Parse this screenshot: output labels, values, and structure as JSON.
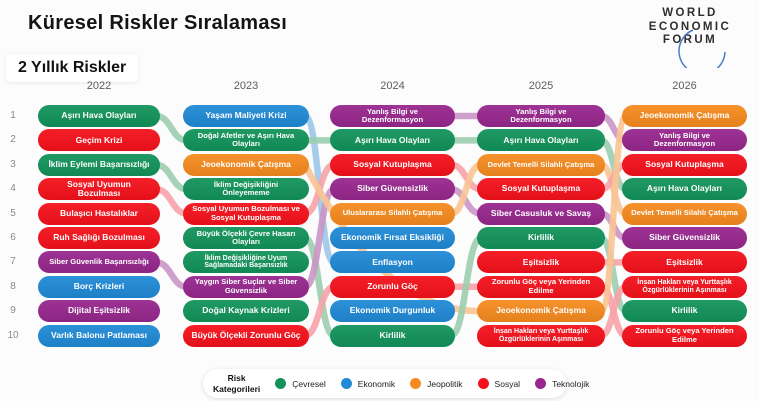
{
  "header": {
    "title": "Küresel Riskler Sıralaması",
    "subtitle": "2 Yıllık Riskler"
  },
  "logo": {
    "lines": [
      "WORLD",
      "ECONOMIC",
      "FORUM"
    ],
    "arc_color": "#4a7ec2"
  },
  "legend": {
    "label": "Risk Kategorileri",
    "items": [
      {
        "key": "cevresel",
        "label": "Çevresel",
        "color": "#12935A"
      },
      {
        "key": "ekonomik",
        "label": "Ekonomik",
        "color": "#208AD6"
      },
      {
        "key": "jeopolitik",
        "label": "Jeopolitik",
        "color": "#F68B1F"
      },
      {
        "key": "sosyal",
        "label": "Sosyal",
        "color": "#F5111B"
      },
      {
        "key": "teknolojik",
        "label": "Teknolojik",
        "color": "#97278E"
      }
    ]
  },
  "chart_data": {
    "type": "table",
    "title": "Küresel Riskler Sıralaması",
    "subtitle": "2 Yıllık Riskler",
    "years": [
      "2022",
      "2023",
      "2024",
      "2025",
      "2026"
    ],
    "ranks": [
      1,
      2,
      3,
      4,
      5,
      6,
      7,
      8,
      9,
      10
    ],
    "category_colors": {
      "cevresel": "#12935A",
      "ekonomik": "#208AD6",
      "jeopolitik": "#F68B1F",
      "sosyal": "#F5111B",
      "teknolojik": "#97278E"
    },
    "ribbon_colors": {
      "cevresel": "#9CCDB0",
      "ekonomik": "#9CC6EA",
      "jeopolitik": "#F8C493",
      "sosyal": "#F7A3A8",
      "teknolojik": "#CA96C6"
    },
    "columns": [
      {
        "year": "2022",
        "items": [
          {
            "rank": 1,
            "label": "Aşırı Hava Olayları",
            "category": "cevresel"
          },
          {
            "rank": 2,
            "label": "Geçim Krizi",
            "category": "sosyal"
          },
          {
            "rank": 3,
            "label": "İklim Eylemi Başarısızlığı",
            "category": "cevresel"
          },
          {
            "rank": 4,
            "label": "Sosyal Uyumun Bozulması",
            "category": "sosyal"
          },
          {
            "rank": 5,
            "label": "Bulaşıcı Hastalıklar",
            "category": "sosyal"
          },
          {
            "rank": 6,
            "label": "Ruh Sağlığı Bozulması",
            "category": "sosyal"
          },
          {
            "rank": 7,
            "label": "Siber Güvenlik Başarısızlığı",
            "category": "teknolojik"
          },
          {
            "rank": 8,
            "label": "Borç Krizleri",
            "category": "ekonomik"
          },
          {
            "rank": 9,
            "label": "Dijital Eşitsizlik",
            "category": "teknolojik"
          },
          {
            "rank": 10,
            "label": "Varlık Balonu Patlaması",
            "category": "ekonomik"
          }
        ]
      },
      {
        "year": "2023",
        "items": [
          {
            "rank": 1,
            "label": "Yaşam Maliyeti Krizi",
            "category": "ekonomik"
          },
          {
            "rank": 2,
            "label": "Doğal Afetler ve Aşırı Hava Olayları",
            "category": "cevresel"
          },
          {
            "rank": 3,
            "label": "Jeoekonomik Çatışma",
            "category": "jeopolitik"
          },
          {
            "rank": 4,
            "label": "İklim Değişikliğini Önleyememe",
            "category": "cevresel"
          },
          {
            "rank": 5,
            "label": "Sosyal Uyumun Bozulması ve Sosyal Kutuplaşma",
            "category": "sosyal"
          },
          {
            "rank": 6,
            "label": "Büyük Ölçekli Çevre Hasarı Olayları",
            "category": "cevresel"
          },
          {
            "rank": 7,
            "label": "İklim Değişikliğine Uyum Sağlamadaki Başarısızlık",
            "category": "cevresel"
          },
          {
            "rank": 8,
            "label": "Yaygın Siber Suçlar ve Siber Güvensizlik",
            "category": "teknolojik"
          },
          {
            "rank": 9,
            "label": "Doğal Kaynak Krizleri",
            "category": "cevresel"
          },
          {
            "rank": 10,
            "label": "Büyük Ölçekli Zorunlu Göç",
            "category": "sosyal"
          }
        ]
      },
      {
        "year": "2024",
        "items": [
          {
            "rank": 1,
            "label": "Yanlış Bilgi ve Dezenformasyon",
            "category": "teknolojik"
          },
          {
            "rank": 2,
            "label": "Aşırı Hava Olayları",
            "category": "cevresel"
          },
          {
            "rank": 3,
            "label": "Sosyal Kutuplaşma",
            "category": "sosyal"
          },
          {
            "rank": 4,
            "label": "Siber Güvensizlik",
            "category": "teknolojik"
          },
          {
            "rank": 5,
            "label": "Uluslararası Silahlı Çatışma",
            "category": "jeopolitik"
          },
          {
            "rank": 6,
            "label": "Ekonomik Fırsat Eksikliği",
            "category": "ekonomik"
          },
          {
            "rank": 7,
            "label": "Enflasyon",
            "category": "ekonomik"
          },
          {
            "rank": 8,
            "label": "Zorunlu Göç",
            "category": "sosyal"
          },
          {
            "rank": 9,
            "label": "Ekonomik Durgunluk",
            "category": "ekonomik"
          },
          {
            "rank": 10,
            "label": "Kirlilik",
            "category": "cevresel"
          }
        ]
      },
      {
        "year": "2025",
        "items": [
          {
            "rank": 1,
            "label": "Yanlış Bilgi ve Dezenformasyon",
            "category": "teknolojik"
          },
          {
            "rank": 2,
            "label": "Aşırı Hava Olayları",
            "category": "cevresel"
          },
          {
            "rank": 3,
            "label": "Devlet Temelli Silahlı Çatışma",
            "category": "jeopolitik"
          },
          {
            "rank": 4,
            "label": "Sosyal Kutuplaşma",
            "category": "sosyal"
          },
          {
            "rank": 5,
            "label": "Siber Casusluk ve Savaş",
            "category": "teknolojik"
          },
          {
            "rank": 6,
            "label": "Kirlilik",
            "category": "cevresel"
          },
          {
            "rank": 7,
            "label": "Eşitsizlik",
            "category": "sosyal"
          },
          {
            "rank": 8,
            "label": "Zorunlu Göç veya Yerinden Edilme",
            "category": "sosyal"
          },
          {
            "rank": 9,
            "label": "Jeoekonomik Çatışma",
            "category": "jeopolitik"
          },
          {
            "rank": 10,
            "label": "İnsan Hakları veya Yurttaşlık Özgürlüklerinin Aşınması",
            "category": "sosyal"
          }
        ]
      },
      {
        "year": "2026",
        "items": [
          {
            "rank": 1,
            "label": "Jeoekonomik Çatışma",
            "category": "jeopolitik"
          },
          {
            "rank": 2,
            "label": "Yanlış Bilgi ve Dezenformasyon",
            "category": "teknolojik"
          },
          {
            "rank": 3,
            "label": "Sosyal Kutuplaşma",
            "category": "sosyal"
          },
          {
            "rank": 4,
            "label": "Aşırı Hava Olayları",
            "category": "cevresel"
          },
          {
            "rank": 5,
            "label": "Devlet Temelli Silahlı Çatışma",
            "category": "jeopolitik"
          },
          {
            "rank": 6,
            "label": "Siber Güvensizlik",
            "category": "teknolojik"
          },
          {
            "rank": 7,
            "label": "Eşitsizlik",
            "category": "sosyal"
          },
          {
            "rank": 8,
            "label": "İnsan Hakları veya Yurttaşlık Özgürlüklerinin Aşınması",
            "category": "sosyal"
          },
          {
            "rank": 9,
            "label": "Kirlilik",
            "category": "cevresel"
          },
          {
            "rank": 10,
            "label": "Zorunlu Göç veya Yerinden Edilme",
            "category": "sosyal"
          }
        ]
      }
    ],
    "links": [
      {
        "from_year": "2022",
        "from_rank": 1,
        "to_year": "2023",
        "to_rank": 2,
        "category": "cevresel"
      },
      {
        "from_year": "2022",
        "from_rank": 3,
        "to_year": "2023",
        "to_rank": 4,
        "category": "cevresel"
      },
      {
        "from_year": "2022",
        "from_rank": 4,
        "to_year": "2023",
        "to_rank": 5,
        "category": "sosyal"
      },
      {
        "from_year": "2022",
        "from_rank": 7,
        "to_year": "2023",
        "to_rank": 8,
        "category": "teknolojik"
      },
      {
        "from_year": "2023",
        "from_rank": 1,
        "to_year": "2024",
        "to_rank": 7,
        "category": "ekonomik"
      },
      {
        "from_year": "2023",
        "from_rank": 2,
        "to_year": "2024",
        "to_rank": 2,
        "category": "cevresel"
      },
      {
        "from_year": "2023",
        "from_rank": 5,
        "to_year": "2024",
        "to_rank": 3,
        "category": "sosyal"
      },
      {
        "from_year": "2023",
        "from_rank": 6,
        "to_year": "2024",
        "to_rank": 10,
        "category": "cevresel"
      },
      {
        "from_year": "2023",
        "from_rank": 8,
        "to_year": "2024",
        "to_rank": 4,
        "category": "teknolojik"
      },
      {
        "from_year": "2023",
        "from_rank": 10,
        "to_year": "2024",
        "to_rank": 8,
        "category": "sosyal"
      },
      {
        "from_year": "2023",
        "from_rank": 3,
        "to_year": "2025",
        "to_rank": 9,
        "category": "jeopolitik"
      },
      {
        "from_year": "2024",
        "from_rank": 1,
        "to_year": "2025",
        "to_rank": 1,
        "category": "teknolojik"
      },
      {
        "from_year": "2024",
        "from_rank": 2,
        "to_year": "2025",
        "to_rank": 2,
        "category": "cevresel"
      },
      {
        "from_year": "2024",
        "from_rank": 3,
        "to_year": "2025",
        "to_rank": 4,
        "category": "sosyal"
      },
      {
        "from_year": "2024",
        "from_rank": 4,
        "to_year": "2025",
        "to_rank": 5,
        "category": "teknolojik"
      },
      {
        "from_year": "2024",
        "from_rank": 5,
        "to_year": "2025",
        "to_rank": 3,
        "category": "jeopolitik"
      },
      {
        "from_year": "2024",
        "from_rank": 8,
        "to_year": "2025",
        "to_rank": 8,
        "category": "sosyal"
      },
      {
        "from_year": "2024",
        "from_rank": 10,
        "to_year": "2025",
        "to_rank": 6,
        "category": "cevresel"
      },
      {
        "from_year": "2025",
        "from_rank": 1,
        "to_year": "2026",
        "to_rank": 2,
        "category": "teknolojik"
      },
      {
        "from_year": "2025",
        "from_rank": 2,
        "to_year": "2026",
        "to_rank": 4,
        "category": "cevresel"
      },
      {
        "from_year": "2025",
        "from_rank": 3,
        "to_year": "2026",
        "to_rank": 5,
        "category": "jeopolitik"
      },
      {
        "from_year": "2025",
        "from_rank": 4,
        "to_year": "2026",
        "to_rank": 3,
        "category": "sosyal"
      },
      {
        "from_year": "2025",
        "from_rank": 5,
        "to_year": "2026",
        "to_rank": 6,
        "category": "teknolojik"
      },
      {
        "from_year": "2025",
        "from_rank": 6,
        "to_year": "2026",
        "to_rank": 9,
        "category": "cevresel"
      },
      {
        "from_year": "2025",
        "from_rank": 7,
        "to_year": "2026",
        "to_rank": 7,
        "category": "sosyal"
      },
      {
        "from_year": "2025",
        "from_rank": 8,
        "to_year": "2026",
        "to_rank": 10,
        "category": "sosyal"
      },
      {
        "from_year": "2025",
        "from_rank": 9,
        "to_year": "2026",
        "to_rank": 1,
        "category": "jeopolitik"
      },
      {
        "from_year": "2025",
        "from_rank": 10,
        "to_year": "2026",
        "to_rank": 8,
        "category": "sosyal"
      }
    ]
  }
}
